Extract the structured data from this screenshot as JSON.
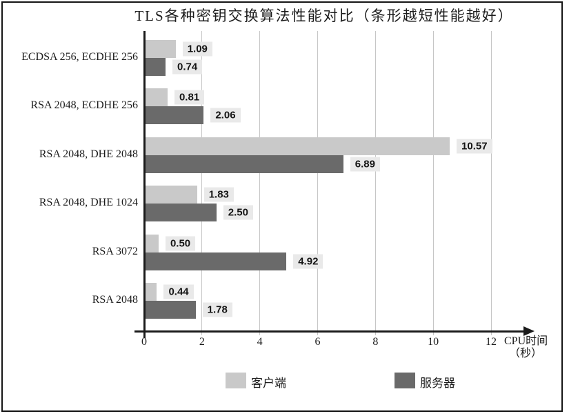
{
  "chart_data": {
    "type": "bar",
    "orientation": "horizontal",
    "title": "TLS各种密钥交换算法性能对比（条形越短性能越好）",
    "categories": [
      "ECDSA 256, ECDHE 256",
      "RSA 2048, ECDHE 256",
      "RSA 2048, DHE 2048",
      "RSA 2048, DHE 1024",
      "RSA 3072",
      "RSA 2048"
    ],
    "series": [
      {
        "name": "客户端",
        "color": "#c9c9c9",
        "values": [
          1.09,
          0.81,
          10.57,
          1.83,
          0.5,
          0.44
        ],
        "labels": [
          "1.09",
          "0.81",
          "10.57",
          "1.83",
          "0.50",
          "0.44"
        ]
      },
      {
        "name": "服务器",
        "color": "#6a6a6a",
        "values": [
          0.74,
          2.06,
          6.89,
          2.5,
          4.92,
          1.78
        ],
        "labels": [
          "0.74",
          "2.06",
          "6.89",
          "2.50",
          "4.92",
          "1.78"
        ]
      }
    ],
    "xlabel": "CPU时间（秒）",
    "xlabel_line1": "CPU时间",
    "xlabel_line2": "（秒）",
    "xticks": [
      "0",
      "2",
      "4",
      "6",
      "8",
      "10",
      "12"
    ],
    "xlim": [
      0,
      12
    ],
    "grid": true,
    "legend_position": "bottom"
  },
  "styles": {
    "client_color": "#c9c9c9",
    "server_color": "#6a6a6a",
    "value_label_bg": "#e9e9e9",
    "grid_color": "#c6c6c6",
    "axis_color": "#1a1a1a",
    "text_color": "#1c1c1c",
    "frame_border_color": "#141414",
    "background": "#ffffff"
  }
}
